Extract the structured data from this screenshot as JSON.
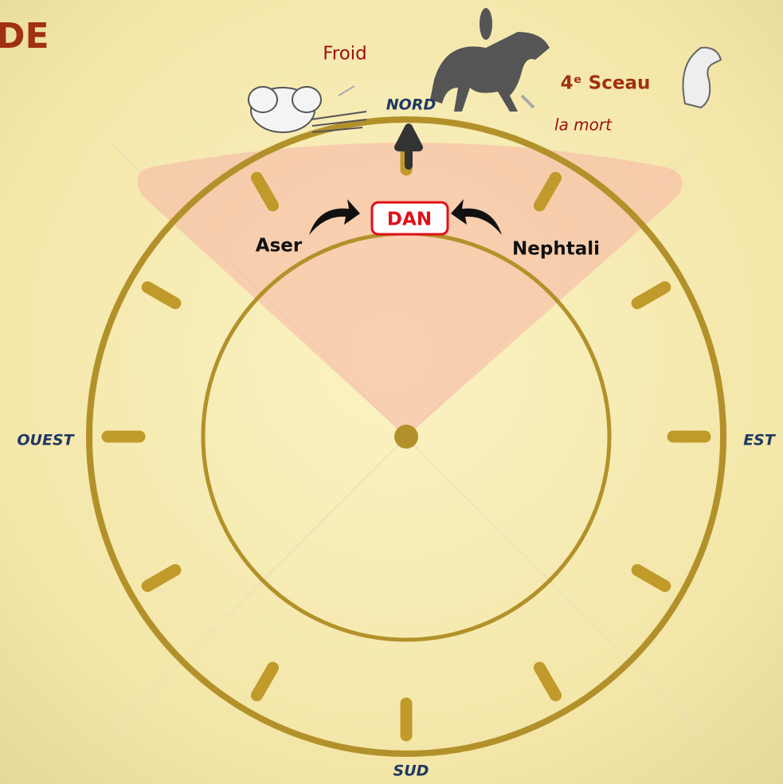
{
  "header": {
    "title": "DE"
  },
  "directions": {
    "north": "NORD",
    "south": "SUD",
    "east": "EST",
    "west": "OUEST"
  },
  "center": {
    "label": "DAN",
    "left": "Aser",
    "right": "Nephtali"
  },
  "annotations": {
    "element": "Froid",
    "seal": "4ᵉ Sceau",
    "seal_meaning": "la mort"
  }
}
